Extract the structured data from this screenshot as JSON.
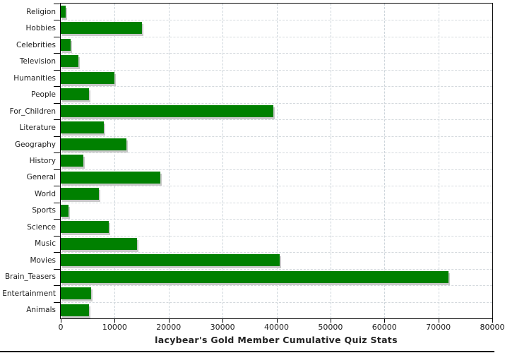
{
  "chart_data": {
    "type": "bar",
    "orientation": "horizontal",
    "title": "lacybear's Gold Member Cumulative Quiz Stats",
    "categories": [
      "Religion",
      "Hobbies",
      "Celebrities",
      "Television",
      "Humanities",
      "People",
      "For_Children",
      "Literature",
      "Geography",
      "History",
      "General",
      "World",
      "Sports",
      "Science",
      "Music",
      "Movies",
      "Brain_Teasers",
      "Entertainment",
      "Animals"
    ],
    "values": [
      900,
      15000,
      1800,
      3300,
      10000,
      5200,
      39400,
      8000,
      12200,
      4200,
      18500,
      7100,
      1400,
      8900,
      14200,
      40600,
      71900,
      5600,
      5300
    ],
    "xlim": [
      0,
      80000
    ],
    "x_tick_values": [
      0,
      10000,
      20000,
      30000,
      40000,
      50000,
      60000,
      70000,
      80000
    ],
    "x_tick_labels": [
      "0",
      "10000",
      "20000",
      "30000",
      "40000",
      "50000",
      "60000",
      "70000",
      "80000"
    ],
    "grid": "dashed",
    "legend": "none",
    "bar_color": "#008000",
    "bar_shadow_color": "#c9c9c9",
    "grid_color": "#ccd4da",
    "axis_color": "#000000",
    "text_color": "#1c1c1c"
  }
}
